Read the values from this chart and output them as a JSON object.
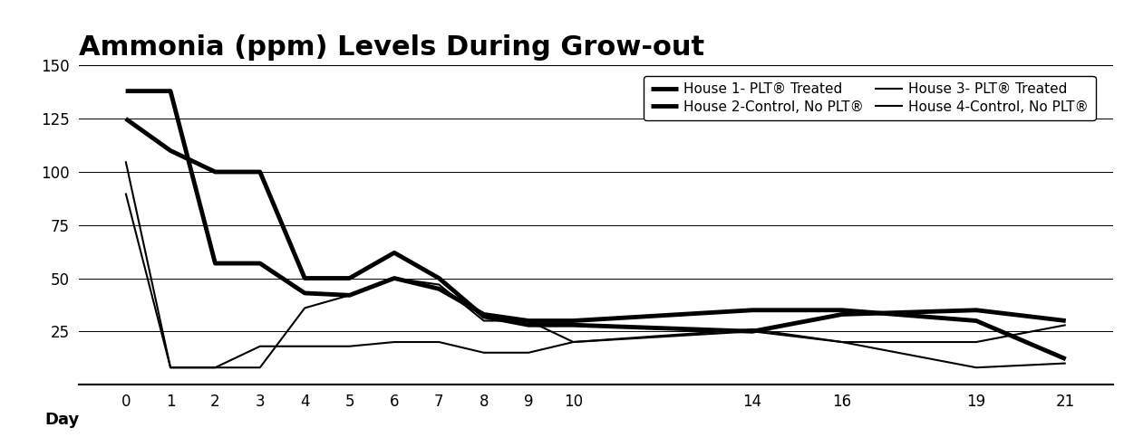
{
  "title": "Ammonia (ppm) Levels During Grow-out",
  "xlabel": "Day",
  "ylim": [
    0,
    150
  ],
  "yticks": [
    0,
    25,
    50,
    75,
    100,
    125,
    150
  ],
  "x_days": [
    0,
    1,
    2,
    3,
    4,
    5,
    6,
    7,
    8,
    9,
    10,
    14,
    16,
    19,
    21
  ],
  "house1": {
    "label": "House 1- PLT® Treated",
    "linewidth": 3.5,
    "color": "#000000",
    "linestyle": "solid",
    "values": [
      138,
      138,
      57,
      57,
      43,
      42,
      50,
      45,
      33,
      30,
      30,
      35,
      35,
      30,
      12
    ]
  },
  "house2": {
    "label": "House 2-Control, No PLT®",
    "linewidth": 3.5,
    "color": "#000000",
    "linestyle": "solid",
    "values": [
      125,
      110,
      100,
      100,
      50,
      50,
      62,
      50,
      32,
      28,
      28,
      25,
      33,
      35,
      30
    ]
  },
  "house3": {
    "label": "House 3- PLT® Treated",
    "linewidth": 1.5,
    "color": "#000000",
    "linestyle": "solid",
    "values": [
      90,
      8,
      8,
      8,
      36,
      42,
      50,
      47,
      30,
      30,
      20,
      26,
      20,
      8,
      10
    ]
  },
  "house4": {
    "label": "House 4-Control, No PLT®",
    "linewidth": 1.5,
    "color": "#000000",
    "linestyle": "solid",
    "values": [
      105,
      8,
      8,
      18,
      18,
      18,
      20,
      20,
      15,
      15,
      20,
      25,
      20,
      20,
      28
    ]
  },
  "background_color": "#ffffff",
  "grid_color": "#000000",
  "title_fontsize": 22,
  "axis_fontsize": 13,
  "tick_fontsize": 12,
  "legend_fontsize": 11
}
